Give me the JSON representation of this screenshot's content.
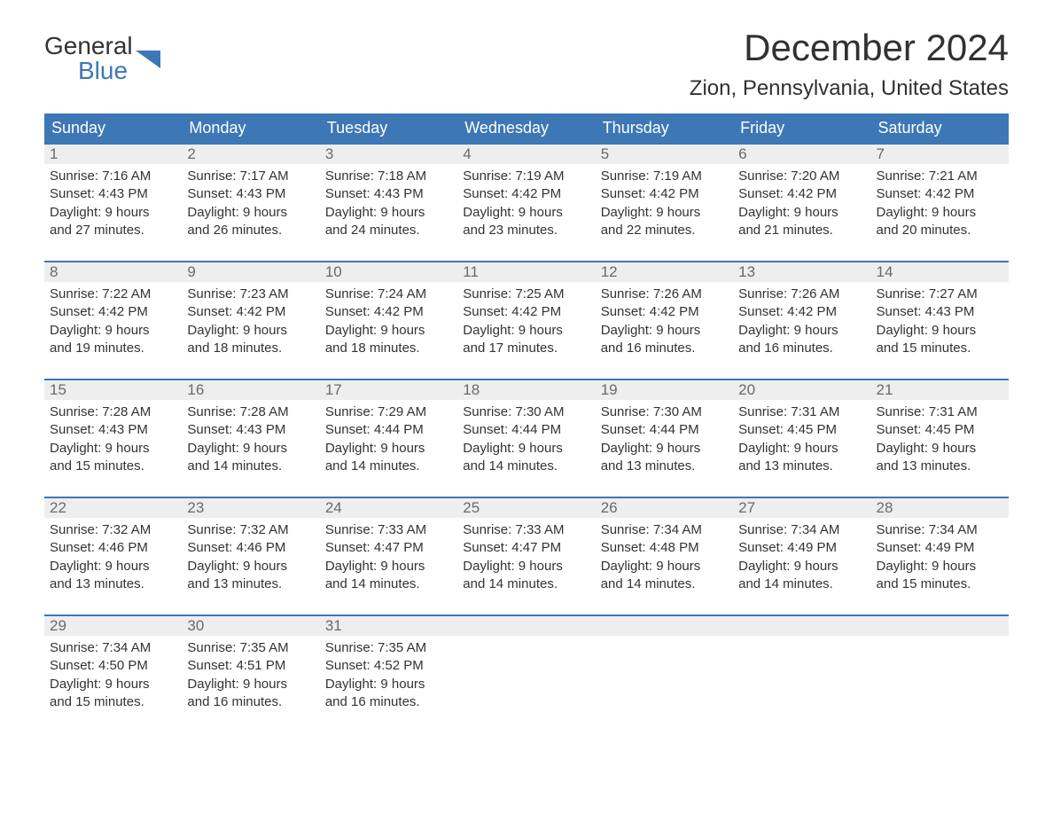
{
  "logo": {
    "general": "General",
    "blue": "Blue"
  },
  "title": "December 2024",
  "location": "Zion, Pennsylvania, United States",
  "colors": {
    "header_bg": "#3d77b6",
    "header_text": "#ffffff",
    "daynum_bg": "#eeeeee",
    "daynum_text": "#6a6a6a",
    "body_text": "#333333",
    "week_border": "#3d77b6"
  },
  "day_headers": [
    "Sunday",
    "Monday",
    "Tuesday",
    "Wednesday",
    "Thursday",
    "Friday",
    "Saturday"
  ],
  "weeks": [
    [
      {
        "n": "1",
        "sunrise": "Sunrise: 7:16 AM",
        "sunset": "Sunset: 4:43 PM",
        "d1": "Daylight: 9 hours",
        "d2": "and 27 minutes."
      },
      {
        "n": "2",
        "sunrise": "Sunrise: 7:17 AM",
        "sunset": "Sunset: 4:43 PM",
        "d1": "Daylight: 9 hours",
        "d2": "and 26 minutes."
      },
      {
        "n": "3",
        "sunrise": "Sunrise: 7:18 AM",
        "sunset": "Sunset: 4:43 PM",
        "d1": "Daylight: 9 hours",
        "d2": "and 24 minutes."
      },
      {
        "n": "4",
        "sunrise": "Sunrise: 7:19 AM",
        "sunset": "Sunset: 4:42 PM",
        "d1": "Daylight: 9 hours",
        "d2": "and 23 minutes."
      },
      {
        "n": "5",
        "sunrise": "Sunrise: 7:19 AM",
        "sunset": "Sunset: 4:42 PM",
        "d1": "Daylight: 9 hours",
        "d2": "and 22 minutes."
      },
      {
        "n": "6",
        "sunrise": "Sunrise: 7:20 AM",
        "sunset": "Sunset: 4:42 PM",
        "d1": "Daylight: 9 hours",
        "d2": "and 21 minutes."
      },
      {
        "n": "7",
        "sunrise": "Sunrise: 7:21 AM",
        "sunset": "Sunset: 4:42 PM",
        "d1": "Daylight: 9 hours",
        "d2": "and 20 minutes."
      }
    ],
    [
      {
        "n": "8",
        "sunrise": "Sunrise: 7:22 AM",
        "sunset": "Sunset: 4:42 PM",
        "d1": "Daylight: 9 hours",
        "d2": "and 19 minutes."
      },
      {
        "n": "9",
        "sunrise": "Sunrise: 7:23 AM",
        "sunset": "Sunset: 4:42 PM",
        "d1": "Daylight: 9 hours",
        "d2": "and 18 minutes."
      },
      {
        "n": "10",
        "sunrise": "Sunrise: 7:24 AM",
        "sunset": "Sunset: 4:42 PM",
        "d1": "Daylight: 9 hours",
        "d2": "and 18 minutes."
      },
      {
        "n": "11",
        "sunrise": "Sunrise: 7:25 AM",
        "sunset": "Sunset: 4:42 PM",
        "d1": "Daylight: 9 hours",
        "d2": "and 17 minutes."
      },
      {
        "n": "12",
        "sunrise": "Sunrise: 7:26 AM",
        "sunset": "Sunset: 4:42 PM",
        "d1": "Daylight: 9 hours",
        "d2": "and 16 minutes."
      },
      {
        "n": "13",
        "sunrise": "Sunrise: 7:26 AM",
        "sunset": "Sunset: 4:42 PM",
        "d1": "Daylight: 9 hours",
        "d2": "and 16 minutes."
      },
      {
        "n": "14",
        "sunrise": "Sunrise: 7:27 AM",
        "sunset": "Sunset: 4:43 PM",
        "d1": "Daylight: 9 hours",
        "d2": "and 15 minutes."
      }
    ],
    [
      {
        "n": "15",
        "sunrise": "Sunrise: 7:28 AM",
        "sunset": "Sunset: 4:43 PM",
        "d1": "Daylight: 9 hours",
        "d2": "and 15 minutes."
      },
      {
        "n": "16",
        "sunrise": "Sunrise: 7:28 AM",
        "sunset": "Sunset: 4:43 PM",
        "d1": "Daylight: 9 hours",
        "d2": "and 14 minutes."
      },
      {
        "n": "17",
        "sunrise": "Sunrise: 7:29 AM",
        "sunset": "Sunset: 4:44 PM",
        "d1": "Daylight: 9 hours",
        "d2": "and 14 minutes."
      },
      {
        "n": "18",
        "sunrise": "Sunrise: 7:30 AM",
        "sunset": "Sunset: 4:44 PM",
        "d1": "Daylight: 9 hours",
        "d2": "and 14 minutes."
      },
      {
        "n": "19",
        "sunrise": "Sunrise: 7:30 AM",
        "sunset": "Sunset: 4:44 PM",
        "d1": "Daylight: 9 hours",
        "d2": "and 13 minutes."
      },
      {
        "n": "20",
        "sunrise": "Sunrise: 7:31 AM",
        "sunset": "Sunset: 4:45 PM",
        "d1": "Daylight: 9 hours",
        "d2": "and 13 minutes."
      },
      {
        "n": "21",
        "sunrise": "Sunrise: 7:31 AM",
        "sunset": "Sunset: 4:45 PM",
        "d1": "Daylight: 9 hours",
        "d2": "and 13 minutes."
      }
    ],
    [
      {
        "n": "22",
        "sunrise": "Sunrise: 7:32 AM",
        "sunset": "Sunset: 4:46 PM",
        "d1": "Daylight: 9 hours",
        "d2": "and 13 minutes."
      },
      {
        "n": "23",
        "sunrise": "Sunrise: 7:32 AM",
        "sunset": "Sunset: 4:46 PM",
        "d1": "Daylight: 9 hours",
        "d2": "and 13 minutes."
      },
      {
        "n": "24",
        "sunrise": "Sunrise: 7:33 AM",
        "sunset": "Sunset: 4:47 PM",
        "d1": "Daylight: 9 hours",
        "d2": "and 14 minutes."
      },
      {
        "n": "25",
        "sunrise": "Sunrise: 7:33 AM",
        "sunset": "Sunset: 4:47 PM",
        "d1": "Daylight: 9 hours",
        "d2": "and 14 minutes."
      },
      {
        "n": "26",
        "sunrise": "Sunrise: 7:34 AM",
        "sunset": "Sunset: 4:48 PM",
        "d1": "Daylight: 9 hours",
        "d2": "and 14 minutes."
      },
      {
        "n": "27",
        "sunrise": "Sunrise: 7:34 AM",
        "sunset": "Sunset: 4:49 PM",
        "d1": "Daylight: 9 hours",
        "d2": "and 14 minutes."
      },
      {
        "n": "28",
        "sunrise": "Sunrise: 7:34 AM",
        "sunset": "Sunset: 4:49 PM",
        "d1": "Daylight: 9 hours",
        "d2": "and 15 minutes."
      }
    ],
    [
      {
        "n": "29",
        "sunrise": "Sunrise: 7:34 AM",
        "sunset": "Sunset: 4:50 PM",
        "d1": "Daylight: 9 hours",
        "d2": "and 15 minutes."
      },
      {
        "n": "30",
        "sunrise": "Sunrise: 7:35 AM",
        "sunset": "Sunset: 4:51 PM",
        "d1": "Daylight: 9 hours",
        "d2": "and 16 minutes."
      },
      {
        "n": "31",
        "sunrise": "Sunrise: 7:35 AM",
        "sunset": "Sunset: 4:52 PM",
        "d1": "Daylight: 9 hours",
        "d2": "and 16 minutes."
      },
      {
        "empty": true,
        "n": "",
        "sunrise": "",
        "sunset": "",
        "d1": "",
        "d2": ""
      },
      {
        "empty": true,
        "n": "",
        "sunrise": "",
        "sunset": "",
        "d1": "",
        "d2": ""
      },
      {
        "empty": true,
        "n": "",
        "sunrise": "",
        "sunset": "",
        "d1": "",
        "d2": ""
      },
      {
        "empty": true,
        "n": "",
        "sunrise": "",
        "sunset": "",
        "d1": "",
        "d2": ""
      }
    ]
  ]
}
